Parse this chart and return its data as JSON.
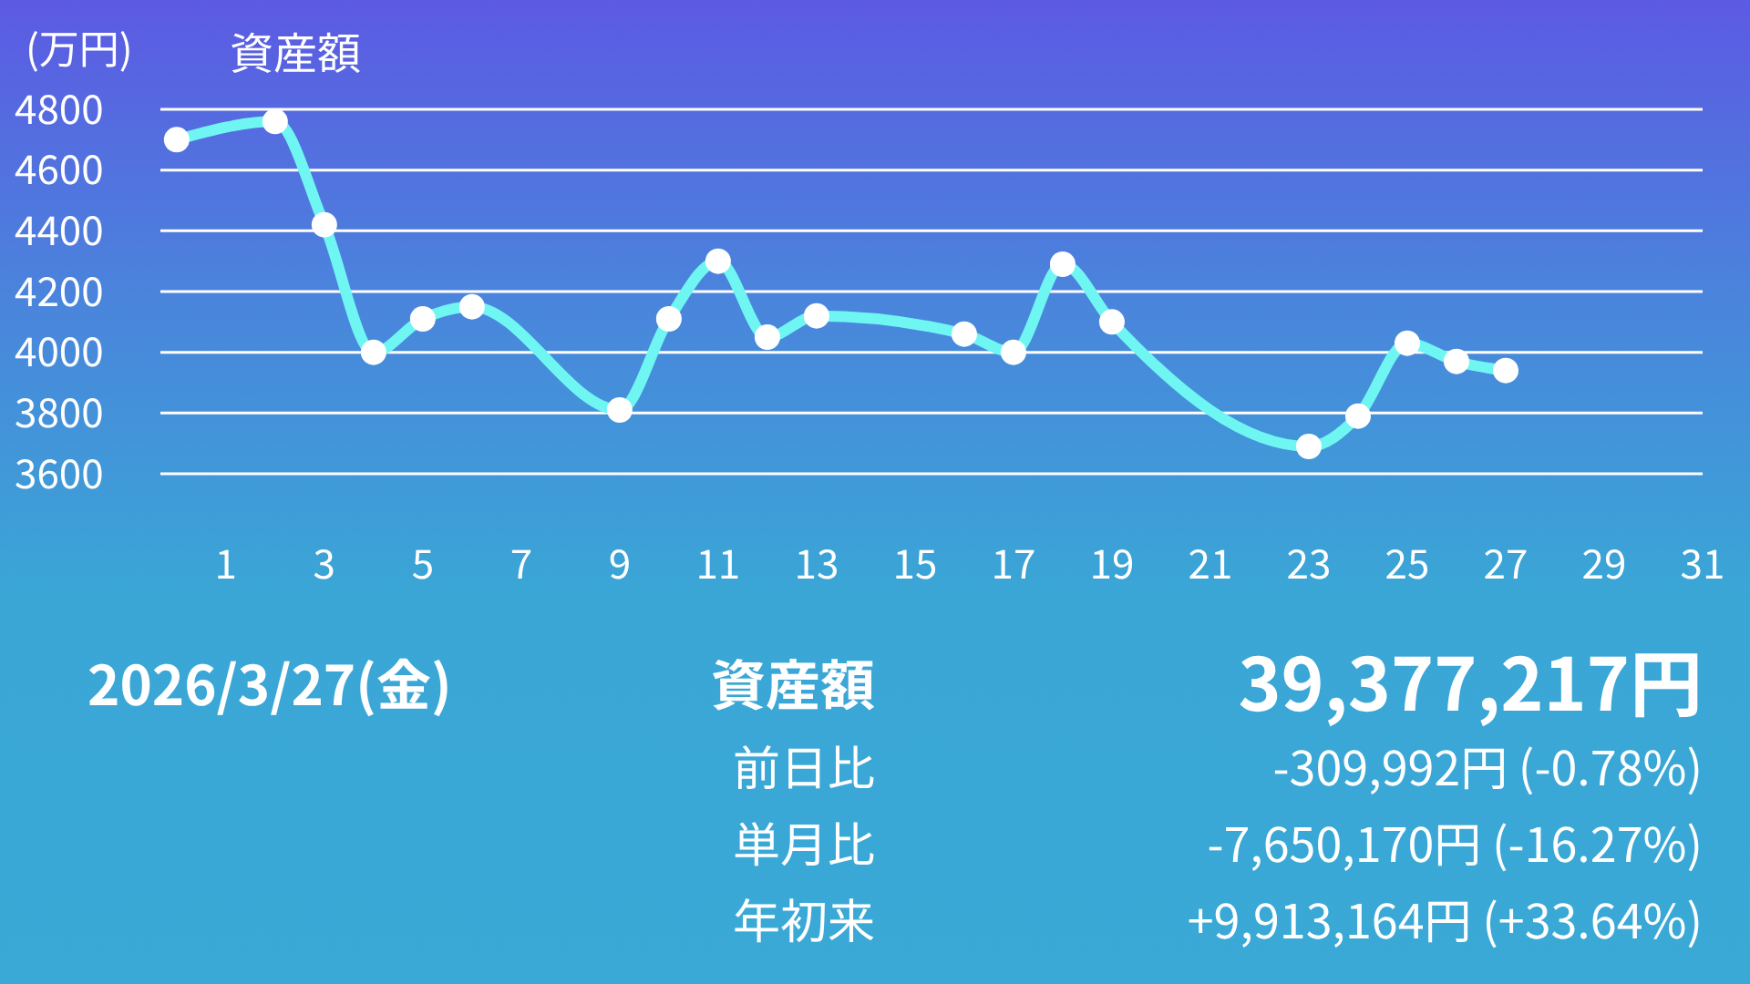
{
  "chart_data": {
    "type": "line",
    "title": "資産額",
    "ylabel": "(万円)",
    "x": [
      0,
      2,
      3,
      4,
      5,
      6,
      9,
      10,
      11,
      12,
      13,
      16,
      17,
      18,
      19,
      23,
      24,
      25,
      26,
      27
    ],
    "series": [
      {
        "color": "#6ff6f2",
        "values": [
          4700,
          4760,
          4420,
          4000,
          4110,
          4150,
          3810,
          4110,
          4300,
          4050,
          4120,
          4060,
          4000,
          4290,
          4100,
          3690,
          3790,
          4030,
          3970,
          3940
        ]
      }
    ],
    "xlim": [
      -0.33,
      31
    ],
    "xticks": [
      1,
      3,
      5,
      7,
      9,
      11,
      13,
      15,
      17,
      19,
      21,
      23,
      25,
      27,
      29,
      31
    ],
    "ylim": [
      3600,
      4800
    ],
    "yticks": [
      3600,
      3800,
      4000,
      4200,
      4400,
      4600,
      4800
    ],
    "grid": "y",
    "marker": "circle",
    "line_style": "solid",
    "legend": false,
    "annotations": [
      "2026/3/27(金)",
      "資産額",
      "39,377,217円",
      "前日比",
      "-309,992円 (-0.78%)",
      "単月比",
      "-7,650,170円 (-16.27%)",
      "年初来",
      "+9,913,164円 (+33.64%)"
    ]
  }
}
